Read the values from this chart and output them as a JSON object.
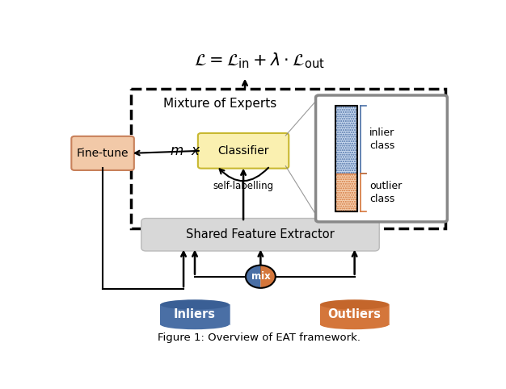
{
  "formula": "$\\mathcal{L} = \\mathcal{L}_{\\mathrm{in}} + \\lambda \\cdot \\mathcal{L}_{\\mathrm{out}}$",
  "inlier_color": "#4a6fa5",
  "outlier_color": "#d4763b",
  "finetune_face": "#f2c9a8",
  "finetune_edge": "#c8805a",
  "classifier_face": "#faf0b0",
  "classifier_edge": "#c8b830",
  "sfe_face": "#d8d8d8",
  "sfe_edge": "#bbbbbb",
  "inset_edge": "#888888",
  "bg_color": "#ffffff",
  "inlier_label": "Inliers",
  "outlier_label": "Outliers",
  "finetune_label": "Fine-tune",
  "classifier_label": "Classifier",
  "sfe_label": "Shared Feature Extractor",
  "moe_label": "Mixture of Experts",
  "mix_label": "mix",
  "self_label": "self-labelling",
  "m_x_label": "$m$  x",
  "caption": "Figure 1: Overview of EAT framework.",
  "fig_w": 6.26,
  "fig_h": 4.82,
  "dpi": 100
}
